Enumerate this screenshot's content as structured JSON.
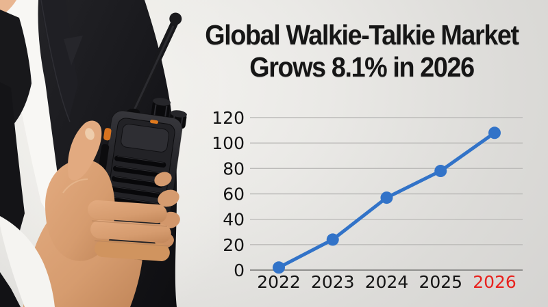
{
  "title": {
    "line1": "Global Walkie-Talkie Market",
    "line2": "Grows 8.1% in 2026"
  },
  "photo": {
    "subject": "businessman in dark suit holding black walkie-talkie"
  },
  "colors": {
    "accent_blue": "#3273c8",
    "highlight_red": "#e8211d",
    "background_gray": "#d6d5d3",
    "text_black": "#141414",
    "gridline_gray": "#bcbbb9",
    "axis_gray": "#8f8f8d"
  },
  "chart_data": {
    "type": "line",
    "title": "Global Walkie-Talkie Market Grows 8.1% in 2026",
    "categories": [
      "2022",
      "2023",
      "2024",
      "2025",
      "2026"
    ],
    "values": [
      2,
      24,
      57,
      78,
      108
    ],
    "xlabel": "",
    "ylabel": "",
    "ylim": [
      0,
      120
    ],
    "yticks": [
      0,
      20,
      40,
      60,
      80,
      100,
      120
    ],
    "grid": true,
    "legend": false,
    "line_color": "#3273c8",
    "marker_color": "#3273c8",
    "tick_color": "#141414",
    "highlight_last_tick_color": "#e8211d"
  }
}
